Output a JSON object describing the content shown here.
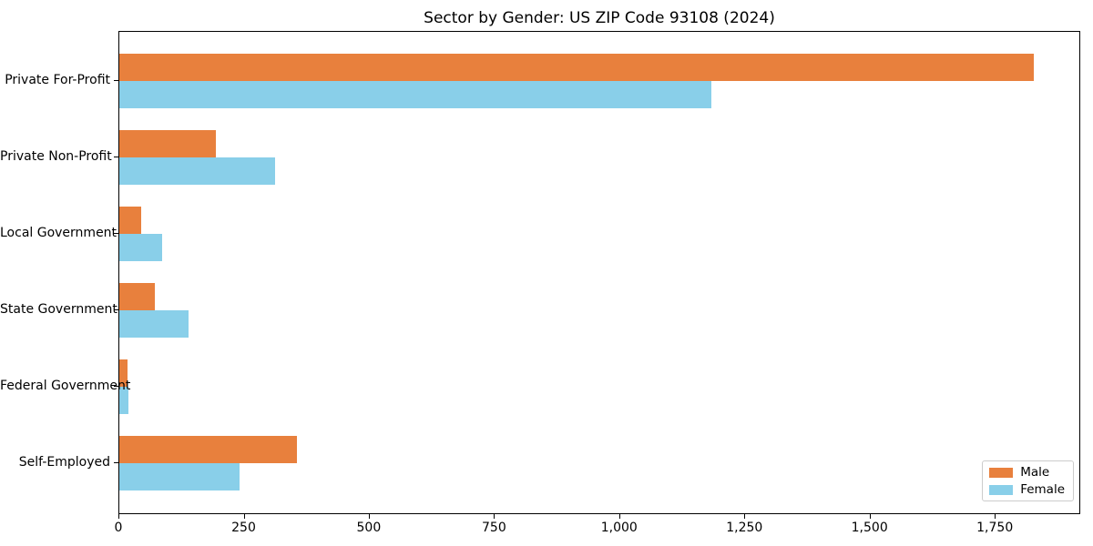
{
  "figure": {
    "background": "#ffffff"
  },
  "chart_data": {
    "type": "bar",
    "orientation": "horizontal",
    "title": "Sector by Gender: US ZIP Code 93108 (2024)",
    "categories": [
      "Private For-Profit",
      "Private Non-Profit",
      "Local Government",
      "State Government",
      "Federal Government",
      "Self-Employed"
    ],
    "series": [
      {
        "name": "Male",
        "color": "#e8803d",
        "values": [
          1826,
          192,
          43,
          70,
          16,
          354
        ]
      },
      {
        "name": "Female",
        "color": "#89cfe9",
        "values": [
          1183,
          311,
          85,
          139,
          18,
          240
        ]
      }
    ],
    "xlabel": "",
    "ylabel": "",
    "xlim": [
      0,
      1917
    ],
    "x_ticks": [
      0,
      250,
      500,
      750,
      1000,
      1250,
      1500,
      1750
    ],
    "x_tick_labels": [
      "0",
      "250",
      "500",
      "750",
      "1,000",
      "1,250",
      "1,500",
      "1,750"
    ],
    "grid": false,
    "legend": {
      "position": "lower-right",
      "entries": [
        "Male",
        "Female"
      ],
      "border_color": "#cccccc"
    }
  },
  "colors": {
    "axis": "#000000",
    "text": "#000000",
    "male": "#e8803d",
    "female": "#89cfe9",
    "legend_border": "#cccccc",
    "background": "#ffffff"
  }
}
